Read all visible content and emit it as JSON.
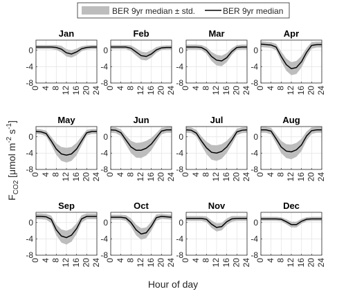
{
  "xlabel": "Hour of day",
  "ylabel": [
    "F",
    "CO2",
    " [μmol m",
    "-2",
    " s",
    "-1",
    "]"
  ],
  "chart_data": [
    {
      "type": "line",
      "title": "Jan",
      "x": [
        0,
        2,
        4,
        6,
        8,
        10,
        12,
        14,
        16,
        18,
        20,
        22,
        24
      ],
      "xlim": [
        0,
        24
      ],
      "xticks": [
        0,
        4,
        8,
        12,
        16,
        20,
        24
      ],
      "ylim": [
        -8,
        2.5
      ],
      "yticks": [
        -8,
        -4,
        0
      ],
      "grid": true,
      "series": [
        {
          "name": "BER 9yr median ± std.",
          "color": "#bdbdbd",
          "std": [
            0.5,
            0.5,
            0.5,
            0.5,
            0.6,
            0.8,
            0.9,
            0.9,
            0.8,
            0.6,
            0.5,
            0.5,
            0.5
          ]
        },
        {
          "name": "BER 9yr median",
          "color": "#000000",
          "values": [
            0.8,
            0.8,
            0.8,
            0.8,
            0.7,
            0.3,
            -0.6,
            -0.9,
            -0.4,
            0.4,
            0.7,
            0.8,
            0.8
          ]
        }
      ]
    },
    {
      "type": "line",
      "title": "Feb",
      "x": [
        0,
        2,
        4,
        6,
        8,
        10,
        12,
        14,
        16,
        18,
        20,
        22,
        24
      ],
      "xlim": [
        0,
        24
      ],
      "xticks": [
        0,
        4,
        8,
        12,
        16,
        20,
        24
      ],
      "ylim": [
        -8,
        2.5
      ],
      "yticks": [
        -8,
        -4,
        0
      ],
      "grid": true,
      "series": [
        {
          "name": "BER 9yr median ± std.",
          "color": "#bdbdbd",
          "std": [
            0.5,
            0.5,
            0.5,
            0.5,
            0.7,
            0.9,
            1,
            1,
            0.9,
            0.7,
            0.5,
            0.5,
            0.5
          ]
        },
        {
          "name": "BER 9yr median",
          "color": "#000000",
          "values": [
            0.8,
            0.8,
            0.8,
            0.8,
            0.5,
            -0.4,
            -1.3,
            -1.5,
            -0.9,
            0.1,
            0.6,
            0.7,
            0.7
          ]
        }
      ]
    },
    {
      "type": "line",
      "title": "Mar",
      "x": [
        0,
        2,
        4,
        6,
        8,
        10,
        12,
        14,
        16,
        18,
        20,
        22,
        24
      ],
      "xlim": [
        0,
        24
      ],
      "xticks": [
        0,
        4,
        8,
        12,
        16,
        20,
        24
      ],
      "ylim": [
        -8,
        2.5
      ],
      "yticks": [
        -8,
        -4,
        0
      ],
      "grid": true,
      "series": [
        {
          "name": "BER 9yr median ± std.",
          "color": "#bdbdbd",
          "std": [
            0.6,
            0.6,
            0.6,
            0.6,
            0.8,
            1.1,
            1.3,
            1.3,
            1.1,
            0.8,
            0.6,
            0.6,
            0.6
          ]
        },
        {
          "name": "BER 9yr median",
          "color": "#000000",
          "values": [
            0.8,
            0.8,
            0.8,
            0.7,
            0,
            -1.5,
            -2.4,
            -2.6,
            -1.8,
            -0.3,
            0.7,
            0.8,
            0.8
          ]
        }
      ]
    },
    {
      "type": "line",
      "title": "Apr",
      "x": [
        0,
        2,
        4,
        6,
        8,
        10,
        12,
        14,
        16,
        18,
        20,
        22,
        24
      ],
      "xlim": [
        0,
        24
      ],
      "xticks": [
        0,
        4,
        8,
        12,
        16,
        20,
        24
      ],
      "ylim": [
        -8,
        2.5
      ],
      "yticks": [
        -8,
        -4,
        0
      ],
      "grid": true,
      "series": [
        {
          "name": "BER 9yr median ± std.",
          "color": "#bdbdbd",
          "std": [
            0.7,
            0.7,
            0.7,
            0.8,
            1.2,
            1.5,
            1.6,
            1.6,
            1.4,
            1.1,
            0.8,
            0.7,
            0.7
          ]
        },
        {
          "name": "BER 9yr median",
          "color": "#000000",
          "values": [
            1.5,
            1.4,
            1.3,
            0.8,
            -1.5,
            -3.5,
            -4.5,
            -4.2,
            -2.8,
            -0.5,
            1.2,
            1.4,
            1.4
          ]
        }
      ]
    },
    {
      "type": "line",
      "title": "May",
      "x": [
        0,
        2,
        4,
        6,
        8,
        10,
        12,
        14,
        16,
        18,
        20,
        22,
        24
      ],
      "xlim": [
        0,
        24
      ],
      "xticks": [
        0,
        4,
        8,
        12,
        16,
        20,
        24
      ],
      "ylim": [
        -8,
        2.5
      ],
      "yticks": [
        -8,
        -4,
        0
      ],
      "grid": true,
      "series": [
        {
          "name": "BER 9yr median ± std.",
          "color": "#bdbdbd",
          "std": [
            0.6,
            0.6,
            0.7,
            1,
            1.4,
            1.7,
            1.8,
            1.7,
            1.5,
            1.1,
            0.7,
            0.6,
            0.6
          ]
        },
        {
          "name": "BER 9yr median",
          "color": "#000000",
          "values": [
            1.3,
            1.2,
            0.8,
            -1,
            -3,
            -4.2,
            -4.5,
            -4.2,
            -3,
            -1,
            1,
            1.3,
            1.3
          ]
        }
      ]
    },
    {
      "type": "line",
      "title": "Jun",
      "x": [
        0,
        2,
        4,
        6,
        8,
        10,
        12,
        14,
        16,
        18,
        20,
        22,
        24
      ],
      "xlim": [
        0,
        24
      ],
      "xticks": [
        0,
        4,
        8,
        12,
        16,
        20,
        24
      ],
      "ylim": [
        -8,
        2.5
      ],
      "yticks": [
        -8,
        -4,
        0
      ],
      "grid": true,
      "series": [
        {
          "name": "BER 9yr median ± std.",
          "color": "#bdbdbd",
          "std": [
            0.7,
            0.7,
            0.8,
            1.1,
            1.5,
            1.8,
            1.9,
            1.8,
            1.5,
            1.1,
            0.8,
            0.7,
            0.7
          ]
        },
        {
          "name": "BER 9yr median",
          "color": "#000000",
          "values": [
            1.7,
            1.6,
            1,
            -0.8,
            -2.5,
            -3.3,
            -3.3,
            -2.8,
            -1.8,
            -0.2,
            1.4,
            1.7,
            1.7
          ]
        }
      ]
    },
    {
      "type": "line",
      "title": "Jul",
      "x": [
        0,
        2,
        4,
        6,
        8,
        10,
        12,
        14,
        16,
        18,
        20,
        22,
        24
      ],
      "xlim": [
        0,
        24
      ],
      "xticks": [
        0,
        4,
        8,
        12,
        16,
        20,
        24
      ],
      "ylim": [
        -8,
        2.5
      ],
      "yticks": [
        -8,
        -4,
        0
      ],
      "grid": true,
      "series": [
        {
          "name": "BER 9yr median ± std.",
          "color": "#bdbdbd",
          "std": [
            0.7,
            0.7,
            0.8,
            1.1,
            1.5,
            1.8,
            1.9,
            1.8,
            1.5,
            1.1,
            0.8,
            0.7,
            0.7
          ]
        },
        {
          "name": "BER 9yr median",
          "color": "#000000",
          "values": [
            1.7,
            1.6,
            0.9,
            -1,
            -2.7,
            -3.8,
            -4,
            -3.6,
            -2.5,
            -0.8,
            1.2,
            1.6,
            1.7
          ]
        }
      ]
    },
    {
      "type": "line",
      "title": "Aug",
      "x": [
        0,
        2,
        4,
        6,
        8,
        10,
        12,
        14,
        16,
        18,
        20,
        22,
        24
      ],
      "xlim": [
        0,
        24
      ],
      "xticks": [
        0,
        4,
        8,
        12,
        16,
        20,
        24
      ],
      "ylim": [
        -8,
        2.5
      ],
      "yticks": [
        -8,
        -4,
        0
      ],
      "grid": true,
      "series": [
        {
          "name": "BER 9yr median ± std.",
          "color": "#bdbdbd",
          "std": [
            0.7,
            0.7,
            0.8,
            1.1,
            1.5,
            1.7,
            1.8,
            1.7,
            1.5,
            1.1,
            0.8,
            0.7,
            0.7
          ]
        },
        {
          "name": "BER 9yr median",
          "color": "#000000",
          "values": [
            1.7,
            1.7,
            1.4,
            -0.5,
            -2.5,
            -3.5,
            -3.7,
            -3.2,
            -2,
            0.2,
            1.5,
            1.7,
            1.7
          ]
        }
      ]
    },
    {
      "type": "line",
      "title": "Sep",
      "x": [
        0,
        2,
        4,
        6,
        8,
        10,
        12,
        14,
        16,
        18,
        20,
        22,
        24
      ],
      "xlim": [
        0,
        24
      ],
      "xticks": [
        0,
        4,
        8,
        12,
        16,
        20,
        24
      ],
      "ylim": [
        -8,
        2.5
      ],
      "yticks": [
        -8,
        -4,
        0
      ],
      "grid": true,
      "series": [
        {
          "name": "BER 9yr median ± std.",
          "color": "#bdbdbd",
          "std": [
            0.7,
            0.7,
            0.7,
            0.9,
            1.3,
            1.6,
            1.7,
            1.6,
            1.3,
            0.9,
            0.7,
            0.7,
            0.7
          ]
        },
        {
          "name": "BER 9yr median",
          "color": "#000000",
          "values": [
            1.5,
            1.5,
            1.4,
            0.8,
            -1.8,
            -3.3,
            -3.7,
            -3.1,
            -1.5,
            0.9,
            1.5,
            1.5,
            1.5
          ]
        }
      ]
    },
    {
      "type": "line",
      "title": "Oct",
      "x": [
        0,
        2,
        4,
        6,
        8,
        10,
        12,
        14,
        16,
        18,
        20,
        22,
        24
      ],
      "xlim": [
        0,
        24
      ],
      "xticks": [
        0,
        4,
        8,
        12,
        16,
        20,
        24
      ],
      "ylim": [
        -8,
        2.5
      ],
      "yticks": [
        -8,
        -4,
        0
      ],
      "grid": true,
      "series": [
        {
          "name": "BER 9yr median ± std.",
          "color": "#bdbdbd",
          "std": [
            0.6,
            0.6,
            0.6,
            0.7,
            1,
            1.3,
            1.4,
            1.3,
            1.1,
            0.8,
            0.6,
            0.6,
            0.6
          ]
        },
        {
          "name": "BER 9yr median",
          "color": "#000000",
          "values": [
            1.3,
            1.3,
            1.3,
            1.1,
            0,
            -1.8,
            -2.8,
            -2.5,
            -0.9,
            1.2,
            1.5,
            1.4,
            1.3
          ]
        }
      ]
    },
    {
      "type": "line",
      "title": "Nov",
      "x": [
        0,
        2,
        4,
        6,
        8,
        10,
        12,
        14,
        16,
        18,
        20,
        22,
        24
      ],
      "xlim": [
        0,
        24
      ],
      "xticks": [
        0,
        4,
        8,
        12,
        16,
        20,
        24
      ],
      "ylim": [
        -8,
        2.5
      ],
      "yticks": [
        -8,
        -4,
        0
      ],
      "grid": true,
      "series": [
        {
          "name": "BER 9yr median ± std.",
          "color": "#bdbdbd",
          "std": [
            0.6,
            0.6,
            0.6,
            0.6,
            0.7,
            0.9,
            1,
            0.9,
            0.8,
            0.7,
            0.6,
            0.6,
            0.6
          ]
        },
        {
          "name": "BER 9yr median",
          "color": "#000000",
          "values": [
            1,
            1,
            1,
            1,
            0.8,
            -0.4,
            -1.2,
            -1,
            0.2,
            0.9,
            1,
            1,
            1
          ]
        }
      ]
    },
    {
      "type": "line",
      "title": "Dec",
      "x": [
        0,
        2,
        4,
        6,
        8,
        10,
        12,
        14,
        16,
        18,
        20,
        22,
        24
      ],
      "xlim": [
        0,
        24
      ],
      "xticks": [
        0,
        4,
        8,
        12,
        16,
        20,
        24
      ],
      "ylim": [
        -8,
        2.5
      ],
      "yticks": [
        -8,
        -4,
        0
      ],
      "grid": true,
      "series": [
        {
          "name": "BER 9yr median ± std.",
          "color": "#bdbdbd",
          "std": [
            0.5,
            0.5,
            0.5,
            0.5,
            0.5,
            0.6,
            0.7,
            0.7,
            0.6,
            0.5,
            0.5,
            0.5,
            0.5
          ]
        },
        {
          "name": "BER 9yr median",
          "color": "#000000",
          "values": [
            0.9,
            0.9,
            0.9,
            0.9,
            0.8,
            0.2,
            -0.5,
            -0.5,
            0.3,
            0.8,
            0.9,
            0.9,
            0.9
          ]
        }
      ]
    }
  ]
}
